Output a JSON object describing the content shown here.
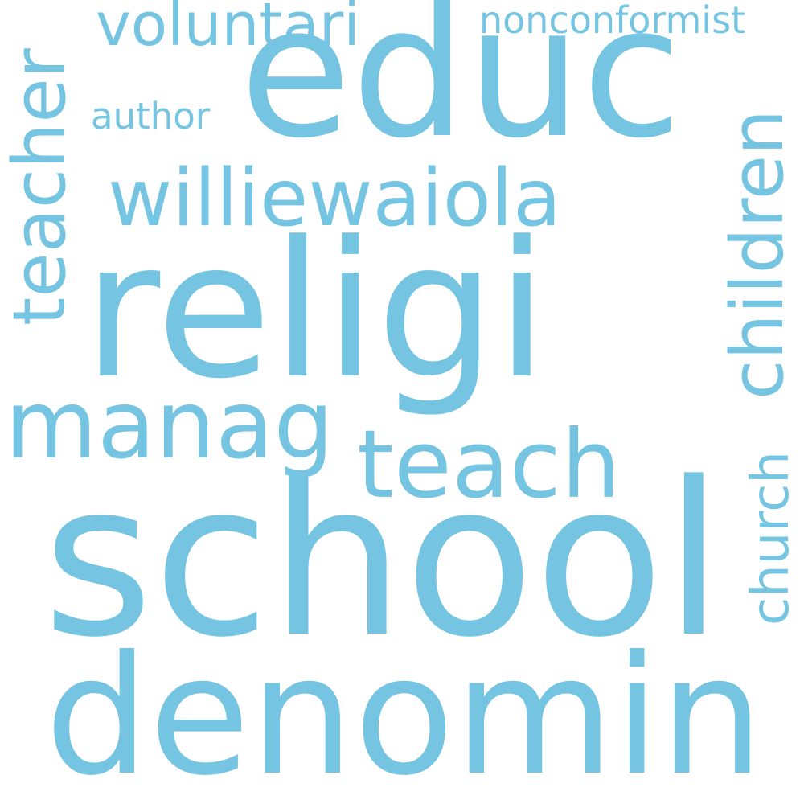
{
  "style": {
    "background": "#ffffff",
    "word_color": "#74c4e2"
  },
  "words": {
    "school": "school",
    "religi": "religi",
    "educ": "educ",
    "denomin": "denomin",
    "williewaiola": "williewaiola",
    "manag": "manag",
    "teach": "teach",
    "teacher": "teacher",
    "children": "children",
    "church": "church",
    "voluntari": "voluntari",
    "nonconformist": "nonconformist",
    "author": "author"
  }
}
